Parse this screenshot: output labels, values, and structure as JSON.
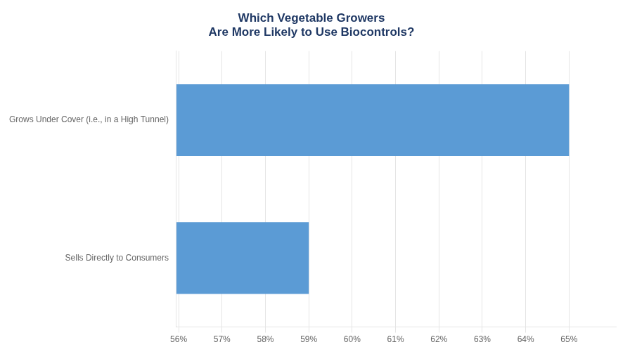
{
  "chart_data": {
    "type": "bar",
    "orientation": "horizontal",
    "title": "Which Vegetable Growers\nAre More Likely to Use Biocontrols?",
    "categories": [
      "Sells Directly to Consumers",
      "Grows Under Cover (i.e., in a High Tunnel)"
    ],
    "values": [
      59.0,
      65.0
    ],
    "color": "#5B9BD5",
    "xlim": [
      55.95,
      66.08
    ],
    "xticks": [
      {
        "value": 56,
        "label": "56%"
      },
      {
        "value": 57,
        "label": "57%"
      },
      {
        "value": 58,
        "label": "58%"
      },
      {
        "value": 59,
        "label": "59%"
      },
      {
        "value": 60,
        "label": "60%"
      },
      {
        "value": 61,
        "label": "61%"
      },
      {
        "value": 62,
        "label": "62%"
      },
      {
        "value": 63,
        "label": "63%"
      },
      {
        "value": 64,
        "label": "64%"
      },
      {
        "value": 65,
        "label": "65%"
      }
    ],
    "grid": true
  }
}
